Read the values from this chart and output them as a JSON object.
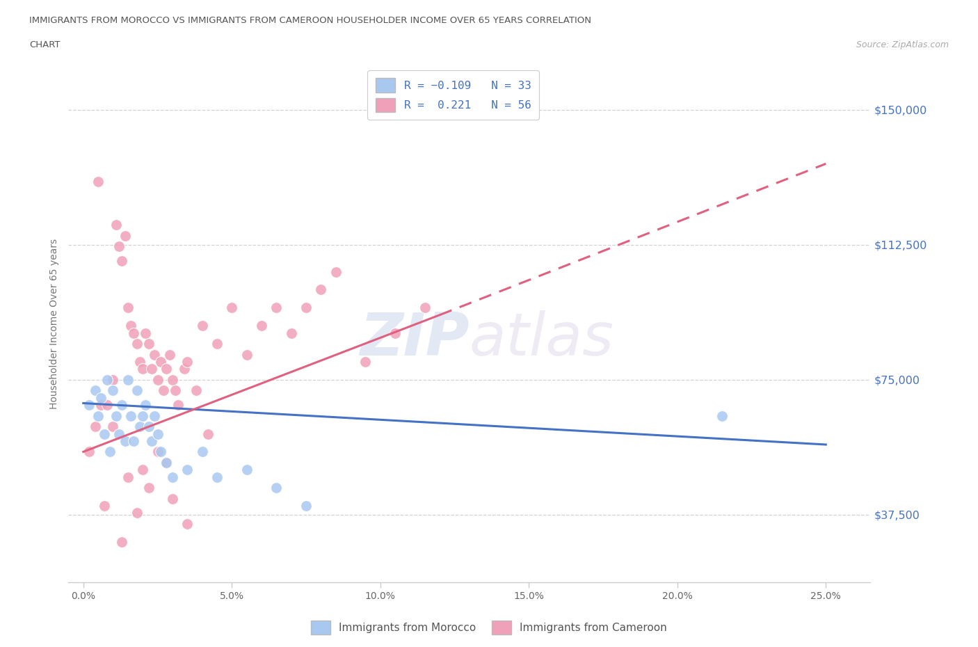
{
  "title_line1": "IMMIGRANTS FROM MOROCCO VS IMMIGRANTS FROM CAMEROON HOUSEHOLDER INCOME OVER 65 YEARS CORRELATION",
  "title_line2": "CHART",
  "source_text": "Source: ZipAtlas.com",
  "ylabel": "Householder Income Over 65 years",
  "xlabel_ticks": [
    "0.0%",
    "5.0%",
    "10.0%",
    "15.0%",
    "20.0%",
    "25.0%"
  ],
  "xlabel_vals": [
    0.0,
    5.0,
    10.0,
    15.0,
    20.0,
    25.0
  ],
  "ylim": [
    18750,
    162500
  ],
  "xlim": [
    -0.5,
    26.5
  ],
  "yticks": [
    37500,
    75000,
    112500,
    150000
  ],
  "ytick_labels": [
    "$37,500",
    "$75,000",
    "$112,500",
    "$150,000"
  ],
  "watermark_zip": "ZIP",
  "watermark_atlas": "atlas",
  "morocco_color": "#a8c8f0",
  "cameroon_color": "#f0a0b8",
  "morocco_line_color": "#4472c4",
  "cameroon_line_color": "#e06080",
  "grid_color": "#c8c8c8",
  "title_color": "#555555",
  "ytick_label_color": "#4472c4",
  "morocco_x": [
    0.2,
    0.4,
    0.5,
    0.6,
    0.7,
    0.8,
    0.9,
    1.0,
    1.1,
    1.2,
    1.3,
    1.4,
    1.5,
    1.6,
    1.7,
    1.8,
    1.9,
    2.0,
    2.1,
    2.2,
    2.3,
    2.4,
    2.5,
    2.6,
    2.8,
    3.0,
    3.5,
    4.0,
    4.5,
    5.5,
    6.5,
    7.5,
    21.5
  ],
  "morocco_y": [
    68000,
    72000,
    65000,
    70000,
    60000,
    75000,
    55000,
    72000,
    65000,
    60000,
    68000,
    58000,
    75000,
    65000,
    58000,
    72000,
    62000,
    65000,
    68000,
    62000,
    58000,
    65000,
    60000,
    55000,
    52000,
    48000,
    50000,
    55000,
    48000,
    50000,
    45000,
    40000,
    65000
  ],
  "cameroon_x": [
    0.2,
    0.4,
    0.5,
    0.6,
    0.8,
    1.0,
    1.1,
    1.2,
    1.3,
    1.4,
    1.5,
    1.6,
    1.7,
    1.8,
    1.9,
    2.0,
    2.1,
    2.2,
    2.3,
    2.4,
    2.5,
    2.6,
    2.7,
    2.8,
    2.9,
    3.0,
    3.1,
    3.2,
    3.4,
    3.5,
    3.8,
    4.0,
    4.5,
    5.0,
    5.5,
    6.0,
    6.5,
    7.0,
    7.5,
    8.0,
    8.5,
    9.5,
    10.5,
    11.5,
    1.5,
    2.0,
    2.5,
    3.0,
    1.8,
    2.2,
    0.7,
    3.5,
    1.0,
    4.2,
    2.8,
    1.3
  ],
  "cameroon_y": [
    55000,
    62000,
    130000,
    68000,
    68000,
    75000,
    118000,
    112000,
    108000,
    115000,
    95000,
    90000,
    88000,
    85000,
    80000,
    78000,
    88000,
    85000,
    78000,
    82000,
    75000,
    80000,
    72000,
    78000,
    82000,
    75000,
    72000,
    68000,
    78000,
    80000,
    72000,
    90000,
    85000,
    95000,
    82000,
    90000,
    95000,
    88000,
    95000,
    100000,
    105000,
    80000,
    88000,
    95000,
    48000,
    50000,
    55000,
    42000,
    38000,
    45000,
    40000,
    35000,
    62000,
    60000,
    52000,
    30000
  ],
  "morocco_trend_x0": 0,
  "morocco_trend_y0": 68500,
  "morocco_trend_x1": 25,
  "morocco_trend_y1": 57000,
  "cameroon_solid_x0": 0,
  "cameroon_solid_y0": 55000,
  "cameroon_solid_x1": 12,
  "cameroon_solid_y1": 93000,
  "cameroon_dash_x0": 12,
  "cameroon_dash_y0": 93000,
  "cameroon_dash_x1": 25,
  "cameroon_dash_y1": 135000
}
